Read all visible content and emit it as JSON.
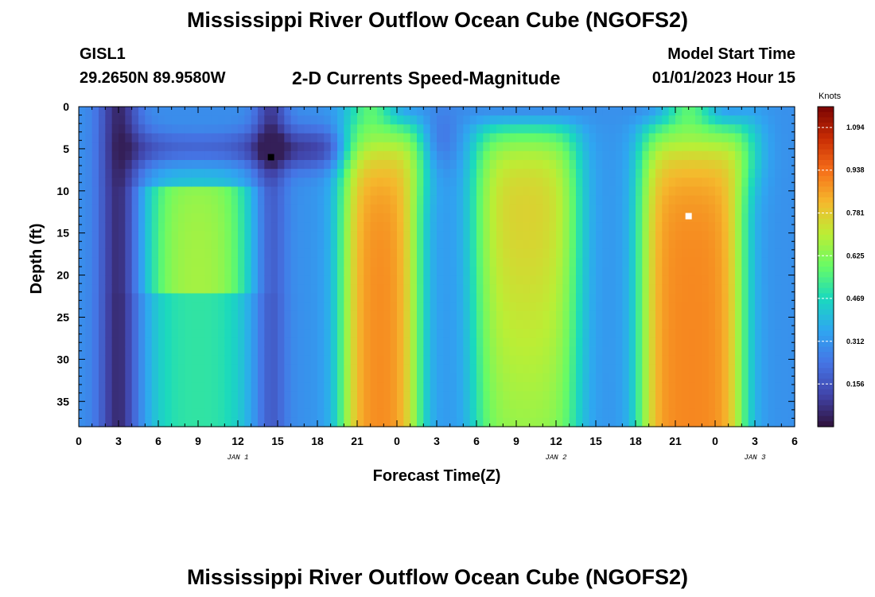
{
  "page": {
    "title": "Mississippi River Outflow Ocean Cube (NGOFS2)",
    "title_bottom": "Mississippi River Outflow Ocean Cube (NGOFS2)",
    "station_id": "GISL1",
    "station_coords": "29.2650N  89.9580W",
    "subtitle": "2-D Currents Speed-Magnitude",
    "model_start_label": "Model Start Time",
    "model_start_value": "01/01/2023 Hour 15"
  },
  "chart_data": {
    "type": "heatmap",
    "title": "2-D Currents Speed-Magnitude",
    "xlabel": "Forecast Time(Z)",
    "ylabel": "Depth (ft)",
    "x_tick_labels": [
      "0",
      "3",
      "6",
      "9",
      "12",
      "15",
      "18",
      "21",
      "0",
      "3",
      "6",
      "9",
      "12",
      "15",
      "18",
      "21",
      "0",
      "3",
      "6"
    ],
    "x_range_hours": [
      0,
      54
    ],
    "day_labels": [
      {
        "label": "JAN 1",
        "hour": 12
      },
      {
        "label": "JAN 2",
        "hour": 36
      },
      {
        "label": "JAN 3",
        "hour": 51
      }
    ],
    "y_tick_labels": [
      "0",
      "5",
      "10",
      "15",
      "20",
      "25",
      "30",
      "35"
    ],
    "y_range_ft": [
      0,
      38
    ],
    "y_inverted": true,
    "colorbar": {
      "units": "Knots",
      "min": 0.0,
      "max": 1.17,
      "tick_labels": [
        "0.156",
        "0.312",
        "0.469",
        "0.625",
        "0.781",
        "0.938",
        "1.094"
      ],
      "tick_values": [
        0.156,
        0.312,
        0.469,
        0.625,
        0.781,
        0.938,
        1.094
      ],
      "colormap": "turbo"
    },
    "min_marker": {
      "hour": 14.5,
      "depth_ft": 6,
      "color": "#000000"
    },
    "max_marker": {
      "hour": 46,
      "depth_ft": 13,
      "color": "#ffffff"
    },
    "grid": false
  }
}
